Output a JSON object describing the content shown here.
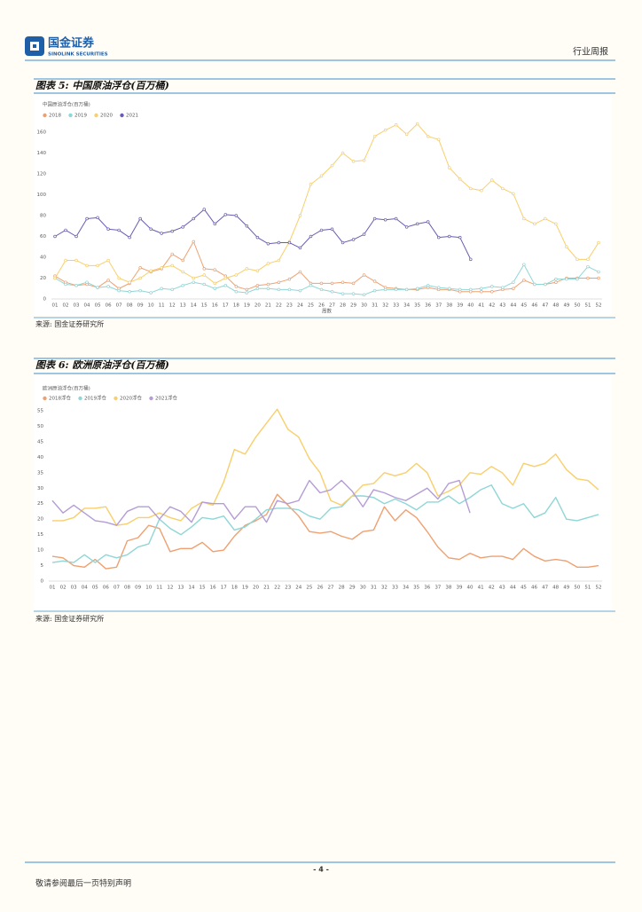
{
  "header": {
    "company": "国金证券",
    "company_en": "SINOLINK SECURITIES",
    "report_type": "行业周报"
  },
  "figures": [
    {
      "title": "图表 5: 中国原油浮仓(百万桶)",
      "source": "来源: 国金证券研究所"
    },
    {
      "title": "图表 6: 欧洲原油浮仓(百万桶)",
      "source": "来源: 国金证券研究所"
    }
  ],
  "chart_data": [
    {
      "type": "line",
      "title": "中国原油浮仓(百万桶)",
      "xlabel": "周数",
      "markers": true,
      "categories": [
        "01",
        "02",
        "03",
        "04",
        "05",
        "06",
        "07",
        "08",
        "09",
        "10",
        "11",
        "12",
        "13",
        "14",
        "15",
        "16",
        "17",
        "18",
        "19",
        "20",
        "21",
        "22",
        "23",
        "24",
        "25",
        "26",
        "27",
        "28",
        "29",
        "30",
        "31",
        "32",
        "33",
        "34",
        "35",
        "36",
        "37",
        "38",
        "39",
        "40",
        "41",
        "42",
        "43",
        "44",
        "45",
        "46",
        "47",
        "48",
        "49",
        "50",
        "51",
        "52"
      ],
      "ylim": [
        0,
        180
      ],
      "yticks": [
        0,
        20,
        40,
        60,
        80,
        100,
        120,
        140,
        160
      ],
      "series": [
        {
          "name": "2018",
          "color": "#f0a070",
          "values": [
            22,
            16,
            13,
            14,
            11,
            18,
            10,
            15,
            30,
            26,
            29,
            43,
            37,
            55,
            29,
            28,
            22,
            12,
            9,
            13,
            14,
            16,
            19,
            26,
            15,
            15,
            15,
            16,
            15,
            23,
            17,
            11,
            10,
            9,
            9,
            11,
            9,
            9,
            7,
            7,
            7,
            7,
            9,
            10,
            18,
            14,
            14,
            16,
            20,
            20,
            20,
            20
          ]
        },
        {
          "name": "2019",
          "color": "#8fd6d6",
          "values": [
            20,
            14,
            13,
            16,
            11,
            12,
            8,
            7,
            8,
            6,
            10,
            9,
            13,
            16,
            14,
            10,
            13,
            7,
            6,
            10,
            10,
            9,
            9,
            8,
            13,
            9,
            7,
            5,
            5,
            4,
            8,
            9,
            9,
            9,
            10,
            13,
            11,
            10,
            9,
            9,
            10,
            12,
            11,
            16,
            33,
            14,
            14,
            19,
            19,
            19,
            31,
            26
          ]
        },
        {
          "name": "2020",
          "color": "#f8cf6a",
          "values": [
            20,
            37,
            37,
            32,
            32,
            37,
            20,
            16,
            20,
            27,
            30,
            32,
            26,
            20,
            23,
            15,
            20,
            23,
            29,
            27,
            34,
            37,
            55,
            80,
            110,
            118,
            128,
            140,
            132,
            133,
            156,
            162,
            167,
            158,
            168,
            156,
            153,
            126,
            115,
            106,
            104,
            114,
            106,
            101,
            77,
            72,
            77,
            72,
            50,
            38,
            38,
            54
          ]
        },
        {
          "name": "2021",
          "color": "#6a5bb3",
          "values": [
            60,
            66,
            60,
            77,
            78,
            67,
            66,
            59,
            77,
            67,
            63,
            65,
            69,
            77,
            86,
            72,
            81,
            80,
            70,
            59,
            53,
            54,
            54,
            49,
            60,
            66,
            67,
            54,
            57,
            62,
            77,
            76,
            77,
            69,
            72,
            74,
            59,
            60,
            59,
            38,
            null,
            null,
            null,
            null,
            null,
            null,
            null,
            null,
            null,
            null,
            null,
            null
          ]
        }
      ]
    },
    {
      "type": "line",
      "title": "欧洲原油浮仓(百万桶)",
      "markers": false,
      "categories": [
        "01",
        "02",
        "03",
        "04",
        "05",
        "06",
        "07",
        "08",
        "09",
        "10",
        "11",
        "12",
        "13",
        "14",
        "15",
        "16",
        "17",
        "18",
        "19",
        "20",
        "21",
        "22",
        "23",
        "24",
        "25",
        "26",
        "27",
        "28",
        "29",
        "30",
        "31",
        "32",
        "33",
        "34",
        "35",
        "36",
        "37",
        "38",
        "39",
        "40",
        "41",
        "42",
        "43",
        "44",
        "45",
        "46",
        "47",
        "48",
        "49",
        "50",
        "51",
        "52"
      ],
      "ylim": [
        0,
        55
      ],
      "yticks": [
        0,
        5,
        10,
        15,
        20,
        25,
        30,
        35,
        40,
        45,
        50,
        55
      ],
      "series": [
        {
          "name": "2018浮仓",
          "color": "#f0a070",
          "values": [
            8,
            7.5,
            5,
            4.5,
            7,
            4,
            4.5,
            13,
            14,
            18,
            17,
            9.5,
            10.5,
            10.5,
            12.5,
            9.5,
            10,
            14.5,
            18,
            19.5,
            21.5,
            28,
            24.5,
            21,
            16,
            15.5,
            16,
            14.5,
            13.5,
            16,
            16.5,
            24,
            19.5,
            23,
            20.5,
            16,
            11,
            7.5,
            7,
            9,
            7.5,
            8,
            8,
            7,
            10.5,
            8,
            6.5,
            7,
            6.5,
            4.5,
            4.5,
            5
          ]
        },
        {
          "name": "2019浮仓",
          "color": "#8fd6d6",
          "values": [
            6,
            6.5,
            6,
            8.5,
            6,
            8.5,
            7.5,
            8.5,
            11,
            12,
            20,
            17,
            15,
            17.5,
            20.5,
            20,
            21,
            16.5,
            17.5,
            20,
            23,
            23.5,
            23.5,
            23,
            21,
            20,
            23.5,
            24,
            27.5,
            27.5,
            27,
            25,
            26.5,
            25,
            23,
            25.5,
            25.5,
            27.5,
            25,
            27,
            29.5,
            31,
            25,
            23.5,
            25,
            20.5,
            22,
            27,
            20,
            19.5,
            20.5,
            21.5
          ]
        },
        {
          "name": "2020浮仓",
          "color": "#f8cf6a",
          "values": [
            19.5,
            19.5,
            20.5,
            23.5,
            23.5,
            24,
            18,
            18.5,
            20.5,
            20.5,
            22,
            20.5,
            19.5,
            23.5,
            25.5,
            24.5,
            32,
            42.5,
            41,
            46.5,
            51,
            55.5,
            49,
            46.5,
            39.5,
            35,
            26,
            24.5,
            27.5,
            31,
            31.5,
            35,
            34,
            35,
            38,
            35,
            27.5,
            29,
            31,
            35,
            34.5,
            37,
            35,
            31,
            38,
            37,
            38,
            41,
            36,
            33,
            32.5,
            29.5
          ]
        },
        {
          "name": "2021浮仓",
          "color": "#b49cd6",
          "values": [
            26,
            22,
            24.5,
            22,
            19.5,
            19,
            18,
            22.5,
            24,
            24,
            20,
            24,
            22.5,
            19,
            25.5,
            25,
            25,
            20,
            24,
            24,
            19,
            26,
            25,
            26,
            32.5,
            28.5,
            29.5,
            32.5,
            29,
            24,
            29.5,
            28.5,
            27,
            26,
            28,
            30,
            26.5,
            31.5,
            32.5,
            22,
            null,
            null,
            null,
            null,
            null,
            null,
            null,
            null,
            null,
            null,
            null,
            null
          ]
        }
      ]
    }
  ],
  "footer": {
    "page": "- 4 -",
    "disclaimer": "敬请参阅最后一页特别声明"
  }
}
